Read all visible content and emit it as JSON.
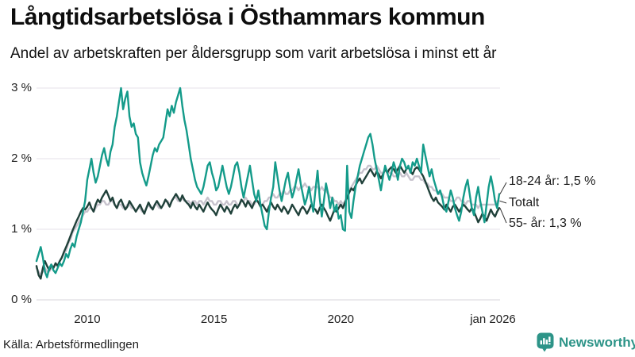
{
  "header": {
    "title": "Långtidsarbetslösa i Östhammars kommun",
    "subtitle": "Andel av arbetskraften per åldersgrupp som varit arbetslösa i minst ett år"
  },
  "footer": {
    "source": "Källa: Arbetsförmedlingen",
    "brand": "Newsworthy",
    "brand_icon": "bar-chart-speech-bubble-icon",
    "brand_color": "#2d9488"
  },
  "chart_data": {
    "type": "line",
    "title": "Långtidsarbetslösa i Östhammars kommun",
    "subtitle": "Andel av arbetskraften per åldersgrupp som varit arbetslösa i minst ett år",
    "unit": "%",
    "x_start": "2008-01",
    "x_end": "2026-04",
    "frequency": "monthly",
    "ylim": [
      0,
      3
    ],
    "grid": "horizontal",
    "yticks": [
      {
        "label": "3 %",
        "value": 3
      },
      {
        "label": "2 %",
        "value": 2
      },
      {
        "label": "1 %",
        "value": 1
      },
      {
        "label": "0 %",
        "value": 0
      }
    ],
    "xticks": [
      {
        "label": "2010",
        "year": 2010
      },
      {
        "label": "2015",
        "year": 2015
      },
      {
        "label": "2020",
        "year": 2020
      },
      {
        "label": "jan 2026",
        "year": 2026
      }
    ],
    "annotations": [
      {
        "text": "18-24 år: 1,5 %",
        "series": "18-24 år",
        "value": 1.5
      },
      {
        "text": "Totalt",
        "series": "Totalt"
      },
      {
        "text": "55- år: 1,3 %",
        "series": "55- år",
        "value": 1.3
      }
    ],
    "series": [
      {
        "name": "18-24 år",
        "color": "#149b8a",
        "values": [
          0.55,
          0.65,
          0.75,
          0.6,
          0.4,
          0.32,
          0.45,
          0.5,
          0.42,
          0.38,
          0.45,
          0.52,
          0.48,
          0.55,
          0.65,
          0.6,
          0.72,
          0.8,
          0.75,
          0.9,
          1.0,
          1.1,
          1.25,
          1.4,
          1.7,
          1.85,
          2.0,
          1.8,
          1.66,
          1.75,
          1.9,
          2.05,
          2.15,
          2.0,
          1.9,
          2.1,
          2.2,
          2.45,
          2.6,
          2.8,
          3.0,
          2.7,
          2.85,
          2.95,
          2.6,
          2.45,
          2.5,
          2.35,
          2.3,
          1.95,
          1.8,
          1.7,
          1.62,
          1.75,
          1.9,
          2.05,
          2.15,
          2.1,
          2.2,
          2.25,
          2.3,
          2.5,
          2.7,
          2.6,
          2.75,
          2.65,
          2.8,
          2.9,
          3.0,
          2.75,
          2.55,
          2.4,
          2.2,
          2.0,
          1.85,
          1.7,
          1.6,
          1.55,
          1.5,
          1.6,
          1.75,
          1.9,
          1.95,
          1.8,
          1.7,
          1.55,
          1.6,
          1.75,
          1.9,
          1.75,
          1.6,
          1.5,
          1.6,
          1.75,
          1.9,
          1.95,
          1.8,
          1.6,
          1.45,
          1.6,
          1.75,
          1.9,
          1.7,
          1.5,
          1.4,
          1.55,
          1.35,
          1.2,
          1.05,
          1.0,
          1.25,
          1.45,
          1.6,
          1.95,
          1.75,
          1.55,
          1.4,
          1.55,
          1.7,
          1.8,
          1.6,
          1.45,
          1.55,
          1.7,
          1.85,
          1.65,
          1.5,
          1.35,
          1.45,
          1.6,
          1.4,
          1.25,
          1.55,
          1.83,
          1.45,
          1.18,
          1.4,
          1.65,
          1.5,
          1.3,
          1.45,
          1.25,
          1.35,
          1.15,
          1.2,
          1.0,
          0.98,
          1.9,
          1.25,
          1.16,
          1.4,
          1.6,
          1.75,
          1.9,
          2.0,
          2.1,
          2.2,
          2.3,
          2.35,
          2.2,
          2.0,
          1.85,
          1.7,
          1.55,
          1.75,
          1.9,
          1.8,
          1.7,
          1.8,
          1.95,
          1.85,
          1.7,
          1.9,
          2.0,
          1.95,
          1.85,
          1.9,
          1.8,
          1.95,
          1.9,
          2.0,
          1.9,
          1.8,
          2.2,
          2.05,
          1.9,
          1.75,
          1.85,
          1.7,
          1.6,
          1.5,
          1.55,
          1.45,
          1.3,
          1.25,
          1.4,
          1.55,
          1.45,
          1.3,
          1.2,
          1.12,
          1.25,
          1.45,
          1.6,
          1.7,
          1.5,
          1.3,
          1.2,
          1.45,
          1.6,
          1.4,
          1.25,
          1.1,
          1.35,
          1.6,
          1.75,
          1.6,
          1.4,
          1.3,
          1.5
        ]
      },
      {
        "name": "Totalt",
        "color": "#c7c3cd",
        "values": [
          0.45,
          0.4,
          0.35,
          0.4,
          0.45,
          0.4,
          0.4,
          0.45,
          0.45,
          0.5,
          0.5,
          0.55,
          0.6,
          0.65,
          0.7,
          0.8,
          0.85,
          0.95,
          1.0,
          1.05,
          1.1,
          1.15,
          1.2,
          1.25,
          1.25,
          1.3,
          1.3,
          1.25,
          1.3,
          1.35,
          1.35,
          1.4,
          1.4,
          1.35,
          1.35,
          1.4,
          1.4,
          1.35,
          1.3,
          1.35,
          1.35,
          1.3,
          1.3,
          1.35,
          1.35,
          1.3,
          1.3,
          1.25,
          1.3,
          1.3,
          1.25,
          1.25,
          1.3,
          1.35,
          1.3,
          1.3,
          1.35,
          1.35,
          1.3,
          1.3,
          1.35,
          1.4,
          1.4,
          1.35,
          1.4,
          1.45,
          1.45,
          1.4,
          1.4,
          1.45,
          1.4,
          1.4,
          1.4,
          1.35,
          1.4,
          1.4,
          1.35,
          1.4,
          1.4,
          1.35,
          1.4,
          1.45,
          1.4,
          1.4,
          1.35,
          1.35,
          1.4,
          1.4,
          1.35,
          1.35,
          1.4,
          1.35,
          1.35,
          1.4,
          1.4,
          1.35,
          1.35,
          1.4,
          1.4,
          1.45,
          1.4,
          1.4,
          1.35,
          1.35,
          1.4,
          1.4,
          1.35,
          1.35,
          1.4,
          1.4,
          1.45,
          1.45,
          1.5,
          1.45,
          1.45,
          1.5,
          1.5,
          1.55,
          1.5,
          1.5,
          1.55,
          1.55,
          1.6,
          1.6,
          1.55,
          1.6,
          1.6,
          1.65,
          1.6,
          1.6,
          1.55,
          1.6,
          1.6,
          1.6,
          1.55,
          1.6,
          1.55,
          1.55,
          1.5,
          1.45,
          1.45,
          1.4,
          1.4,
          1.35,
          1.4,
          1.35,
          1.4,
          1.45,
          1.55,
          1.6,
          1.65,
          1.7,
          1.75,
          1.8,
          1.8,
          1.85,
          1.85,
          1.9,
          1.9,
          1.85,
          1.85,
          1.9,
          1.85,
          1.8,
          1.8,
          1.85,
          1.8,
          1.8,
          1.8,
          1.75,
          1.75,
          1.8,
          1.8,
          1.75,
          1.75,
          1.8,
          1.75,
          1.7,
          1.7,
          1.75,
          1.75,
          1.75,
          1.7,
          1.7,
          1.65,
          1.65,
          1.6,
          1.6,
          1.55,
          1.55,
          1.5,
          1.5,
          1.5,
          1.45,
          1.45,
          1.45,
          1.4,
          1.4,
          1.4,
          1.45,
          1.45,
          1.4,
          1.4,
          1.35,
          1.4,
          1.4,
          1.35,
          1.35,
          1.35,
          1.3,
          1.35,
          1.35,
          1.35,
          1.35,
          1.35,
          1.35,
          1.35,
          1.35,
          1.4,
          1.4
        ]
      },
      {
        "name": "55- år",
        "color": "#20413a",
        "values": [
          0.48,
          0.35,
          0.3,
          0.45,
          0.55,
          0.48,
          0.42,
          0.5,
          0.45,
          0.52,
          0.48,
          0.55,
          0.6,
          0.68,
          0.75,
          0.82,
          0.9,
          0.98,
          1.05,
          1.12,
          1.18,
          1.25,
          1.3,
          1.28,
          1.32,
          1.38,
          1.3,
          1.25,
          1.35,
          1.42,
          1.38,
          1.45,
          1.5,
          1.55,
          1.48,
          1.4,
          1.45,
          1.35,
          1.3,
          1.38,
          1.42,
          1.35,
          1.28,
          1.32,
          1.4,
          1.35,
          1.3,
          1.25,
          1.3,
          1.35,
          1.28,
          1.22,
          1.3,
          1.38,
          1.32,
          1.28,
          1.35,
          1.4,
          1.35,
          1.3,
          1.35,
          1.42,
          1.38,
          1.32,
          1.4,
          1.45,
          1.5,
          1.45,
          1.4,
          1.48,
          1.42,
          1.38,
          1.35,
          1.3,
          1.38,
          1.32,
          1.28,
          1.35,
          1.3,
          1.25,
          1.32,
          1.38,
          1.32,
          1.28,
          1.25,
          1.2,
          1.28,
          1.35,
          1.3,
          1.25,
          1.32,
          1.28,
          1.22,
          1.3,
          1.35,
          1.3,
          1.35,
          1.42,
          1.38,
          1.32,
          1.4,
          1.35,
          1.3,
          1.38,
          1.42,
          1.38,
          1.32,
          1.35,
          1.3,
          1.25,
          1.32,
          1.38,
          1.32,
          1.28,
          1.35,
          1.3,
          1.25,
          1.32,
          1.28,
          1.22,
          1.28,
          1.35,
          1.3,
          1.25,
          1.2,
          1.28,
          1.32,
          1.28,
          1.22,
          1.28,
          1.35,
          1.3,
          1.28,
          1.22,
          1.3,
          1.35,
          1.3,
          1.25,
          1.18,
          1.12,
          1.2,
          1.28,
          1.25,
          1.3,
          1.35,
          1.3,
          1.38,
          1.45,
          1.52,
          1.58,
          1.55,
          1.62,
          1.68,
          1.72,
          1.65,
          1.7,
          1.75,
          1.8,
          1.85,
          1.8,
          1.75,
          1.82,
          1.78,
          1.72,
          1.78,
          1.85,
          1.8,
          1.85,
          1.88,
          1.85,
          1.8,
          1.85,
          1.9,
          1.85,
          1.8,
          1.85,
          1.88,
          1.82,
          1.78,
          1.85,
          1.88,
          1.85,
          1.8,
          1.75,
          1.68,
          1.6,
          1.52,
          1.45,
          1.4,
          1.45,
          1.38,
          1.35,
          1.32,
          1.28,
          1.35,
          1.3,
          1.25,
          1.32,
          1.35,
          1.3,
          1.25,
          1.3,
          1.35,
          1.32,
          1.28,
          1.25,
          1.3,
          1.25,
          1.18,
          1.1,
          1.15,
          1.22,
          1.18,
          1.12,
          1.2,
          1.28,
          1.22,
          1.18,
          1.25,
          1.3
        ]
      }
    ]
  }
}
